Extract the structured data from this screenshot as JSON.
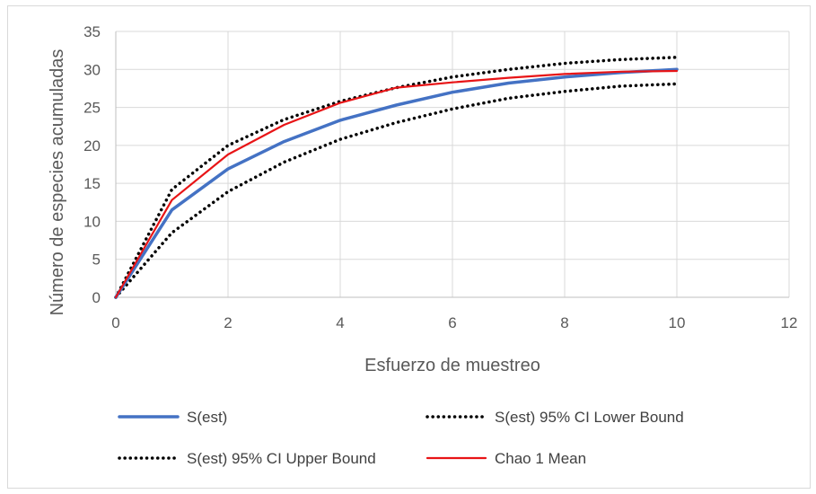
{
  "chart_data": {
    "type": "line",
    "title": "",
    "xlabel": "Esfuerzo de muestreo",
    "ylabel": "Número de especies acumuladas",
    "xlim": [
      0,
      12
    ],
    "ylim": [
      0,
      35
    ],
    "xticks": [
      0,
      2,
      4,
      6,
      8,
      10,
      12
    ],
    "yticks": [
      0,
      5,
      10,
      15,
      20,
      25,
      30,
      35
    ],
    "grid": true,
    "legend_position": "bottom",
    "x": [
      0,
      1,
      2,
      3,
      4,
      5,
      6,
      7,
      8,
      9,
      10
    ],
    "series": [
      {
        "name": "S(est)",
        "values": [
          0,
          11.5,
          16.9,
          20.5,
          23.3,
          25.3,
          27.0,
          28.2,
          29.0,
          29.6,
          30.0
        ],
        "color": "#4472c4",
        "style": "solid"
      },
      {
        "name": "S(est) 95% CI Lower Bound",
        "values": [
          0,
          8.5,
          13.9,
          17.8,
          20.8,
          23.0,
          24.8,
          26.2,
          27.1,
          27.8,
          28.1
        ],
        "color": "#000000",
        "style": "dotted"
      },
      {
        "name": "S(est) 95% CI Upper Bound",
        "values": [
          0,
          14.2,
          20.0,
          23.4,
          25.8,
          27.6,
          29.0,
          30.0,
          30.8,
          31.3,
          31.6
        ],
        "color": "#000000",
        "style": "dotted"
      },
      {
        "name": "Chao 1 Mean",
        "values": [
          0,
          12.8,
          18.8,
          22.7,
          25.6,
          27.6,
          28.3,
          28.9,
          29.4,
          29.7,
          29.8
        ],
        "color": "#e81416",
        "style": "solid"
      }
    ]
  }
}
